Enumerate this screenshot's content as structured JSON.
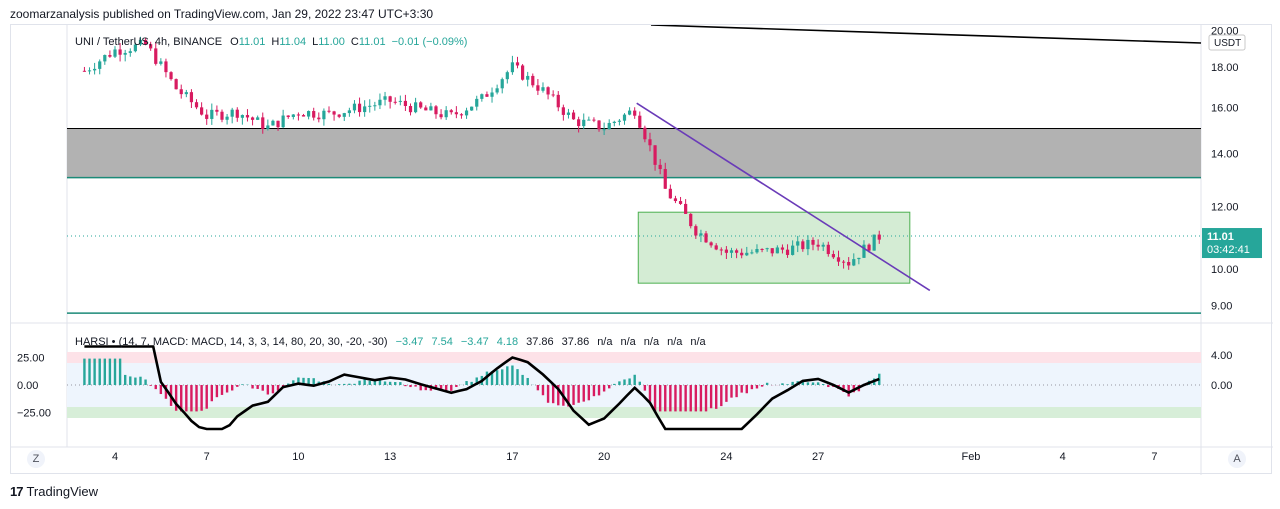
{
  "header": {
    "published": "zoomarzanalysis published on TradingView.com, Jan 29, 2022 23:47 UTC+3:30"
  },
  "legend": {
    "symbol": "UNI / TetherUS, 4h, BINANCE",
    "o_label": "O",
    "o": "11.01",
    "h_label": "H",
    "h": "11.04",
    "l_label": "L",
    "l": "11.00",
    "c_label": "C",
    "c": "11.01",
    "change": "−0.01 (−0.09%)"
  },
  "price_axis": {
    "currency": "USDT",
    "ticks": [
      "20.00",
      "18.00",
      "16.00",
      "14.00",
      "12.00",
      "10.00",
      "9.00"
    ],
    "last_price": "11.01",
    "countdown": "03:42:41"
  },
  "indicator": {
    "label": "HARSI • (14, 7, MACD: MACD, 14, 3, 3, 14, 80, 20, 30, -20, -30)",
    "values": [
      "−3.47",
      "7.54",
      "−3.47",
      "4.18",
      "37.86",
      "37.86",
      "n/a",
      "n/a",
      "n/a",
      "n/a",
      "n/a"
    ],
    "value_colors": [
      "#26a69a",
      "#26a69a",
      "#26a69a",
      "#26a69a",
      "#131722",
      "#131722",
      "#131722",
      "#131722",
      "#131722",
      "#131722",
      "#131722"
    ],
    "left_ticks": [
      "25.00",
      "0.00",
      "−25.00"
    ],
    "right_ticks": [
      "4.00",
      "0.00"
    ]
  },
  "time_axis": {
    "ticks": [
      "4",
      "7",
      "10",
      "13",
      "17",
      "20",
      "24",
      "27",
      "Feb",
      "4",
      "7"
    ]
  },
  "buttons": {
    "z": "Z",
    "a": "A"
  },
  "footer": {
    "brand": "TradingView",
    "logo": "17"
  },
  "colors": {
    "up": "#26a69a",
    "down": "#d81b60",
    "trendline": "#6a3bb8",
    "zone": "#b2b2b2",
    "box": "#d4ecd4",
    "osc": "#000000"
  },
  "chart_data": {
    "type": "candlestick",
    "title": "UNI / TetherUS, 4h, BINANCE",
    "x_ticks": [
      "4",
      "7",
      "10",
      "13",
      "17",
      "20",
      "24",
      "27",
      "Feb",
      "4",
      "7"
    ],
    "ylim": [
      8.6,
      20.1
    ],
    "y_scale": "log",
    "support_resistance_zone": [
      13.05,
      15.05
    ],
    "support_line": 8.8,
    "consolidation_box": {
      "from": "Jan 22",
      "to": "Jan 30",
      "price_range": [
        9.6,
        11.8
      ]
    },
    "descending_trendline": {
      "from": [
        "Jan 21",
        16.2
      ],
      "to": [
        "Jan 30",
        9.4
      ]
    },
    "last_price": 11.01,
    "close_path": {
      "dates": [
        "Jan 3",
        "Jan 4",
        "Jan 5",
        "Jan 6",
        "Jan 7",
        "Jan 8",
        "Jan 9",
        "Jan 10",
        "Jan 11",
        "Jan 12",
        "Jan 13",
        "Jan 14",
        "Jan 15",
        "Jan 16",
        "Jan 17",
        "Jan 18",
        "Jan 19",
        "Jan 20",
        "Jan 21",
        "Jan 22",
        "Jan 23",
        "Jan 24",
        "Jan 25",
        "Jan 26",
        "Jan 27",
        "Jan 28",
        "Jan 29"
      ],
      "values": [
        17.8,
        18.9,
        19.2,
        16.9,
        15.6,
        15.8,
        15.1,
        15.8,
        15.7,
        16.0,
        16.3,
        15.9,
        15.6,
        16.4,
        18.0,
        16.8,
        15.4,
        15.1,
        15.9,
        12.6,
        11.2,
        10.5,
        10.5,
        10.6,
        10.8,
        10.2,
        11.0
      ]
    },
    "indicator": {
      "name": "HARSI",
      "left_ticks": [
        25,
        0,
        -25
      ],
      "right_ticks": [
        4,
        0
      ],
      "bands": {
        "upper": [
          20,
          30
        ],
        "lower": [
          -20,
          -30
        ]
      }
    }
  }
}
